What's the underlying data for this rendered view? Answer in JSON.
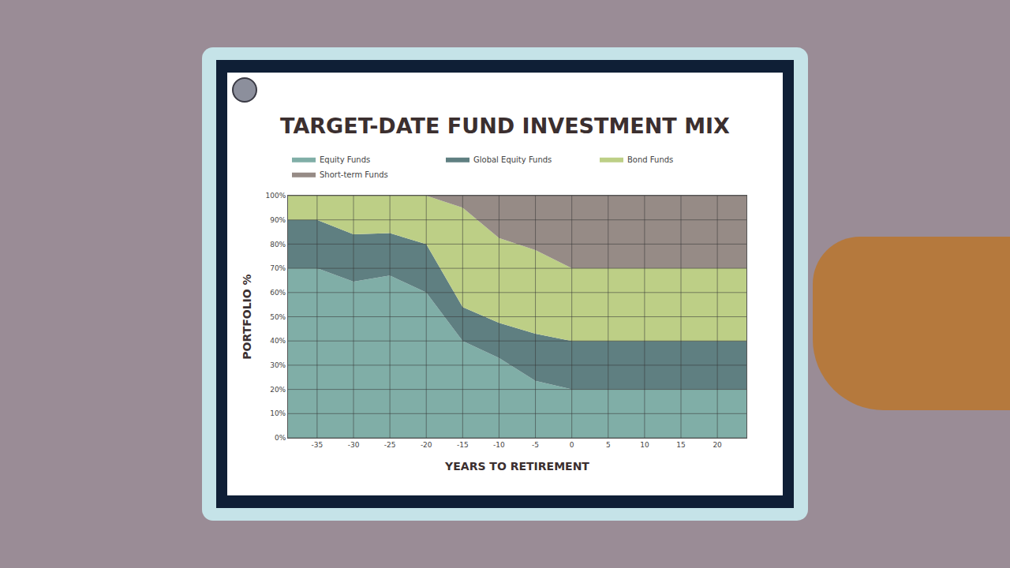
{
  "chart_data": {
    "type": "area",
    "title": "TARGET-DATE FUND INVESTMENT MIX",
    "x_label": "YEARS TO RETIREMENT",
    "y_label": "PORTFOLIO %",
    "x": [
      -39,
      -35,
      -30,
      -25,
      -20,
      -15,
      -10,
      -5,
      0,
      5,
      10,
      15,
      20,
      24
    ],
    "series": [
      {
        "name": "Equity Funds",
        "color": "#80aea7",
        "values": [
          70,
          70,
          64.5,
          67,
          60,
          40,
          33,
          23.5,
          20,
          20,
          20,
          20,
          20,
          20
        ]
      },
      {
        "name": "Global Equity Funds",
        "color": "#5f7f81",
        "values": [
          20,
          20,
          19.5,
          17.5,
          20,
          14,
          14.5,
          19.5,
          20,
          20,
          20,
          20,
          20,
          20
        ]
      },
      {
        "name": "Bond Funds",
        "color": "#bdcf86",
        "values": [
          10,
          10,
          16,
          15.5,
          20,
          41,
          35,
          34.5,
          30,
          30,
          30,
          30,
          30,
          30
        ]
      },
      {
        "name": "Short-term Funds",
        "color": "#968b86",
        "values": [
          0,
          0,
          0,
          0,
          0,
          5,
          17.5,
          22.5,
          30,
          30,
          30,
          30,
          30,
          30
        ]
      }
    ],
    "xlim": [
      -39,
      24
    ],
    "ylim": [
      0,
      100
    ],
    "xticks": [
      -35,
      -30,
      -25,
      -20,
      -15,
      -10,
      -5,
      0,
      5,
      10,
      15,
      20
    ],
    "yticks": [
      {
        "value": 0,
        "label": "0%"
      },
      {
        "value": 10,
        "label": "10%"
      },
      {
        "value": 20,
        "label": "20%"
      },
      {
        "value": 30,
        "label": "30%"
      },
      {
        "value": 40,
        "label": "40%"
      },
      {
        "value": 50,
        "label": "50%"
      },
      {
        "value": 60,
        "label": "60%"
      },
      {
        "value": 70,
        "label": "70%"
      },
      {
        "value": 80,
        "label": "80%"
      },
      {
        "value": 90,
        "label": "90%"
      },
      {
        "value": 100,
        "label": "100%"
      }
    ],
    "stacked": true,
    "grid": true,
    "legend": "top"
  }
}
